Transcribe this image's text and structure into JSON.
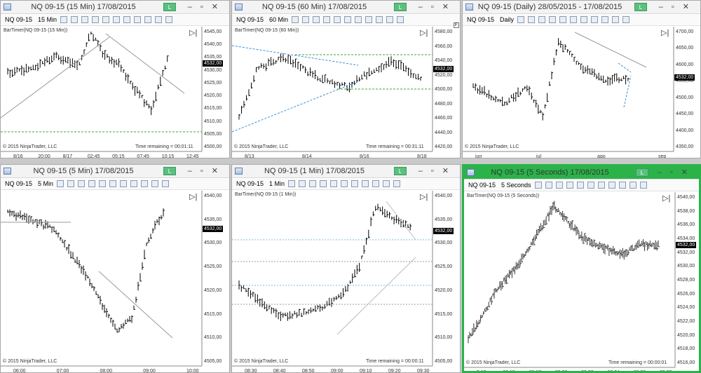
{
  "windows": [
    {
      "id": "w1",
      "title": "NQ 09-15 (15 Min)  17/08/2015",
      "instrument": "NQ 09-15",
      "interval": "15 Min",
      "label": "BarTimer(NQ 09-15 (15 Min))",
      "copyright": "© 2015 NinjaTrader, LLC",
      "time_remaining": "Time remaining = 00:01:11",
      "price_tag": "4532,00",
      "y_ticks": [
        "4545,00",
        "4540,00",
        "4535,00",
        "4530,00",
        "4525,00",
        "4520,00",
        "4515,00",
        "4510,00",
        "4505,00",
        "4500,00"
      ],
      "x_ticks": [
        "8/16",
        "20:00",
        "8/17",
        "02:45",
        "05:15",
        "07:45",
        "10:15",
        "12:45"
      ]
    },
    {
      "id": "w2",
      "title": "NQ 09-15 (60 Min)  17/08/2015",
      "instrument": "NQ 09-15",
      "interval": "60 Min",
      "label": "BarTimer(NQ 09-15 (60 Min))",
      "copyright": "© 2015 NinjaTrader, LLC",
      "time_remaining": "Time remaining = 00:31:11",
      "price_tag": "4532,00",
      "badge": "F",
      "y_ticks": [
        "4580,00",
        "4560,00",
        "4540,00",
        "4520,00",
        "4500,00",
        "4480,00",
        "4460,00",
        "4440,00",
        "4420,00"
      ],
      "x_ticks": [
        "8/13",
        "8/14",
        "8/16",
        "8/18"
      ]
    },
    {
      "id": "w3",
      "title": "NQ 09-15 (Daily)  28/05/2015 - 17/08/2015",
      "instrument": "NQ 09-15",
      "interval": "Daily",
      "copyright": "© 2015 NinjaTrader, LLC",
      "price_tag": "4532,00",
      "y_ticks": [
        "4700,00",
        "4650,00",
        "4600,00",
        "4550,00",
        "4500,00",
        "4450,00",
        "4400,00",
        "4350,00"
      ],
      "x_ticks": [
        "jun",
        "jul",
        "ago",
        "sep"
      ]
    },
    {
      "id": "w4",
      "title": "NQ 09-15 (5 Min)  17/08/2015",
      "instrument": "NQ 09-15",
      "interval": "5 Min",
      "copyright": "© 2015 NinjaTrader, LLC",
      "price_tag": "4532,00",
      "y_ticks": [
        "4540,00",
        "4535,00",
        "4530,00",
        "4525,00",
        "4520,00",
        "4515,00",
        "4510,00",
        "4505,00"
      ],
      "x_ticks": [
        "06:00",
        "07:00",
        "08:00",
        "09:00",
        "10:00"
      ]
    },
    {
      "id": "w5",
      "title": "NQ 09-15 (1 Min)  17/08/2015",
      "instrument": "NQ 09-15",
      "interval": "1 Min",
      "label": "BarTimer(NQ 09-15 (1 Min))",
      "copyright": "© 2015 NinjaTrader, LLC",
      "time_remaining": "Time remaining = 00:00:11",
      "price_tag": "4532,00",
      "y_ticks": [
        "4540,00",
        "4535,00",
        "4530,00",
        "4525,00",
        "4520,00",
        "4515,00",
        "4510,00",
        "4505,00"
      ],
      "x_ticks": [
        "08:30",
        "08:40",
        "08:50",
        "09:00",
        "09:10",
        "09:20",
        "09:30"
      ]
    },
    {
      "id": "w6",
      "title": "NQ 09-15 (5 Seconds)  17/08/2015",
      "instrument": "NQ 09-15",
      "interval": "5 Seconds",
      "label": "BarTimer(NQ 09-15 (5 Seconds))",
      "copyright": "© 2015 NinjaTrader, LLC",
      "time_remaining": "Time remaining = 00:00:01",
      "price_tag": "4532,00",
      "y_ticks": [
        "4540,00",
        "4538,00",
        "4536,00",
        "4534,00",
        "4532,00",
        "4530,00",
        "4528,00",
        "4526,00",
        "4524,00",
        "4522,00",
        "4520,00",
        "4518,00",
        "4516,00"
      ],
      "x_ticks": [
        "9:13",
        "09:15",
        "09:17",
        "09:20",
        "09:22",
        "09:24",
        "09:26",
        "09:28"
      ]
    }
  ],
  "link_label": "L",
  "colors": {
    "active_border": "#2bb34a",
    "trend_dashed": "#3b8fd6",
    "level_dashed": "#3aa83a"
  }
}
